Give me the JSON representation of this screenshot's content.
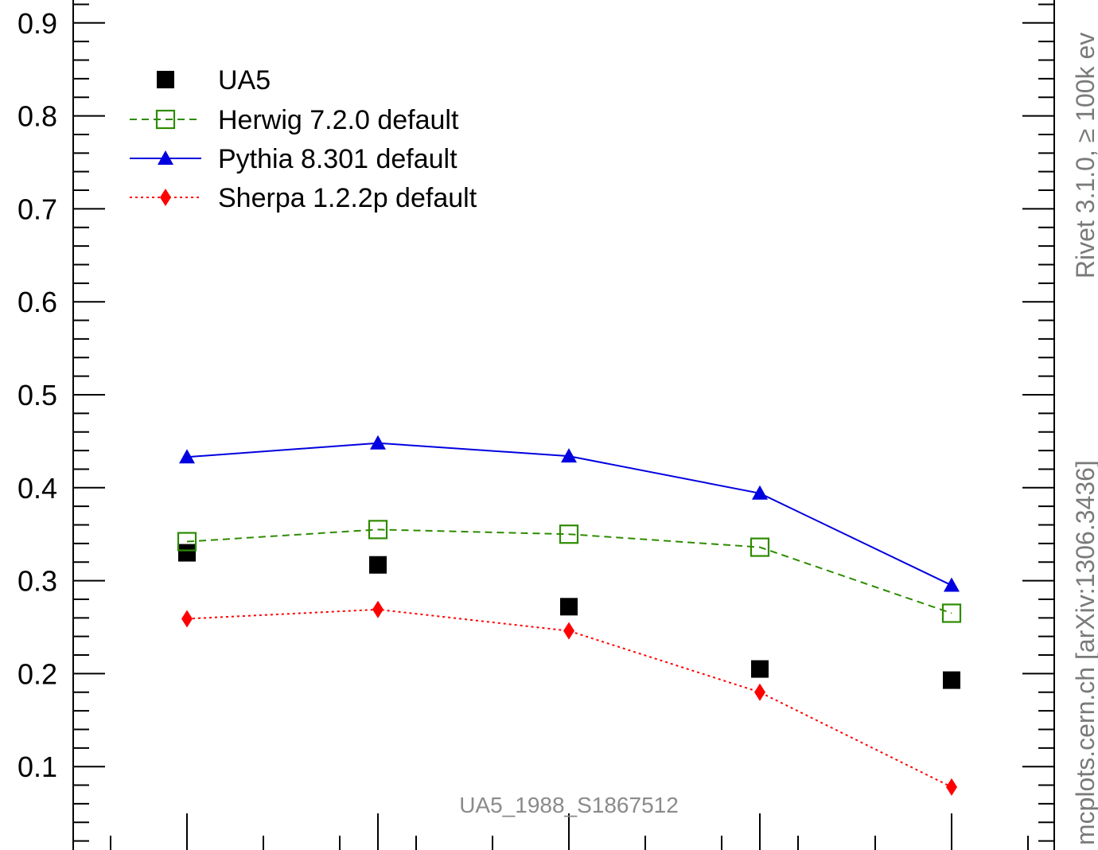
{
  "chart_data": {
    "type": "line",
    "x": [
      1,
      2,
      3,
      4,
      5
    ],
    "ylim": [
      0,
      0.92
    ],
    "yticks": [
      "0.1",
      "0.2",
      "0.3",
      "0.4",
      "0.5",
      "0.6",
      "0.7",
      "0.8",
      "0.9"
    ],
    "ytick_values": [
      0.1,
      0.2,
      0.3,
      0.4,
      0.5,
      0.6,
      0.7,
      0.8,
      0.9
    ],
    "grid": false,
    "legend_position": "top-left",
    "series": [
      {
        "name": "UA5",
        "style": "markers",
        "marker": "filled-square",
        "color": "#000000",
        "values": [
          0.33,
          0.317,
          0.272,
          0.205,
          0.193
        ]
      },
      {
        "name": "Herwig 7.2.0 default",
        "style": "dashed",
        "marker": "open-square",
        "color": "#2e8b00",
        "values": [
          0.342,
          0.355,
          0.35,
          0.336,
          0.265
        ]
      },
      {
        "name": "Pythia 8.301 default",
        "style": "solid",
        "marker": "filled-triangle",
        "color": "#0000e0",
        "values": [
          0.433,
          0.448,
          0.434,
          0.394,
          0.295
        ]
      },
      {
        "name": "Sherpa 1.2.2p default",
        "style": "dotted",
        "marker": "filled-diamond",
        "color": "#ff0000",
        "values": [
          0.259,
          0.269,
          0.246,
          0.18,
          0.078
        ]
      }
    ],
    "annotation": "UA5_1988_S1867512"
  },
  "side_text": {
    "upper": "Rivet 3.1.0, ≥ 100k ev",
    "lower": "mcplots.cern.ch [arXiv:1306.3436]"
  }
}
